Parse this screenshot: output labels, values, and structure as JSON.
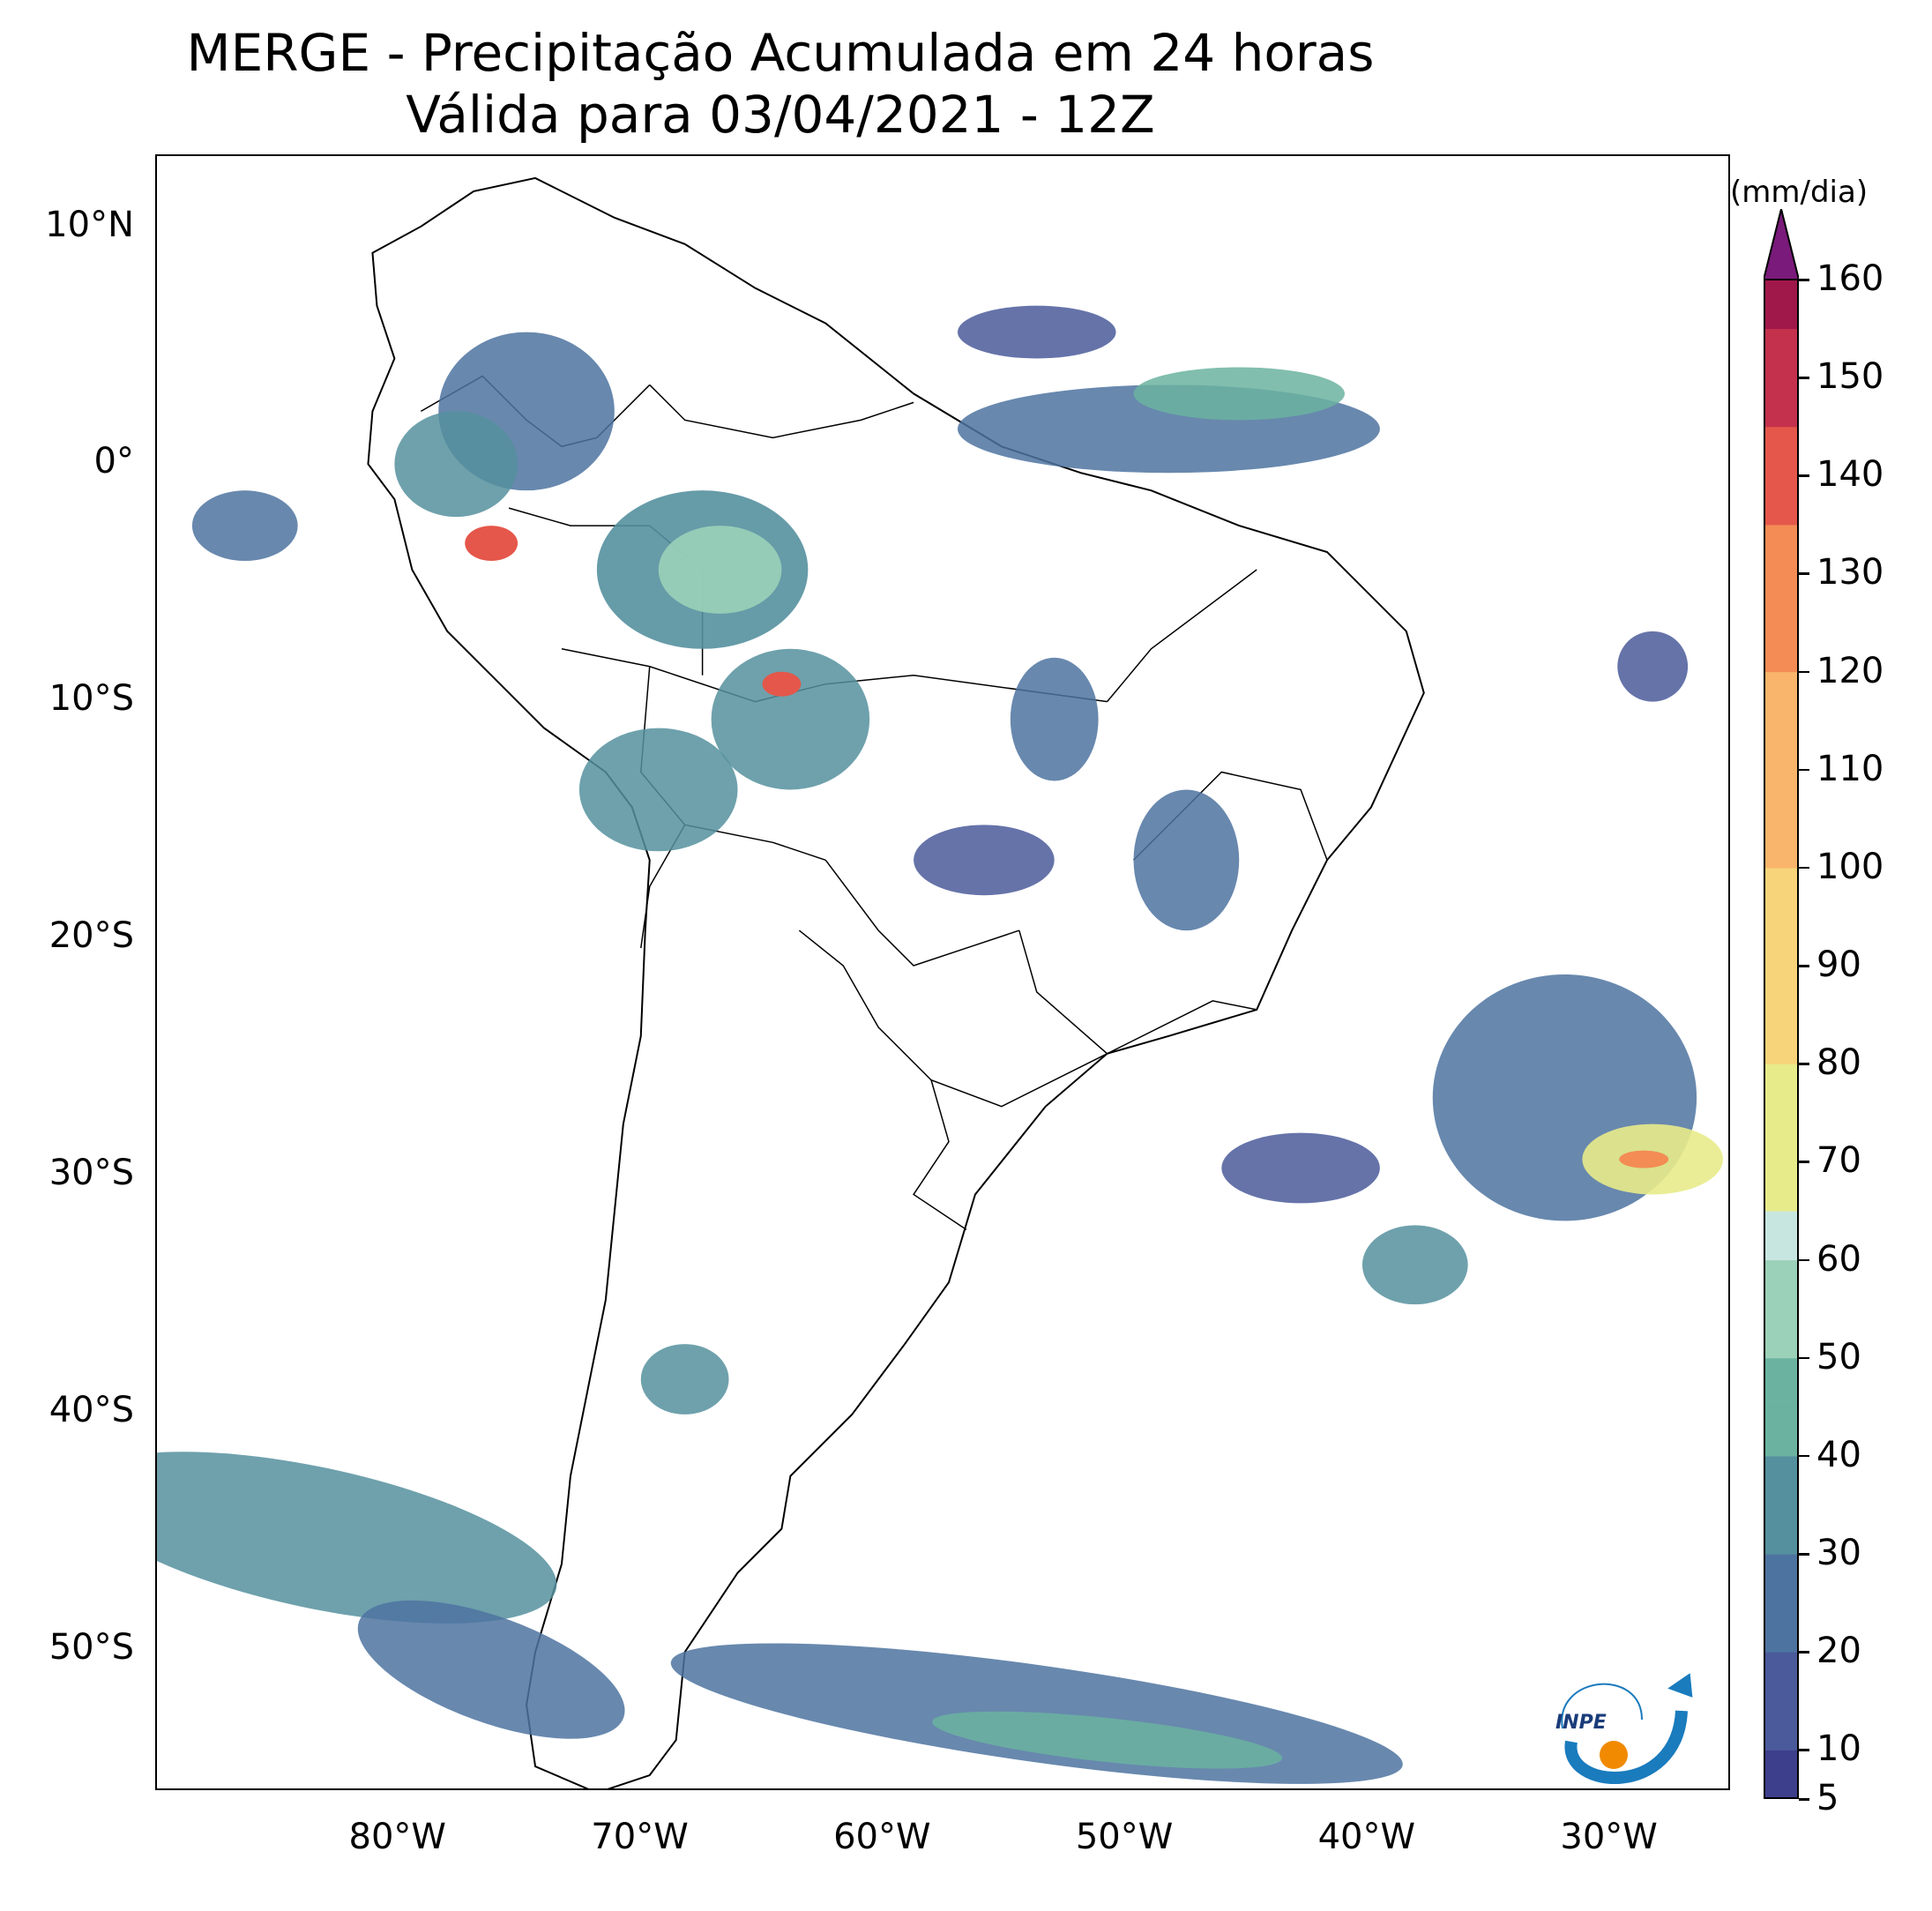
{
  "title": "MERGE - Precipitação Acumulada em 24 horas",
  "subtitle": "Válida para 03/04/2021 - 12Z",
  "map": {
    "extent_lon": [
      -90,
      -25
    ],
    "extent_lat": [
      -56,
      13
    ],
    "lat_labels": [
      "10°N",
      "0°",
      "10°S",
      "20°S",
      "30°S",
      "40°S",
      "50°S"
    ],
    "lat_values": [
      10,
      0,
      -10,
      -20,
      -30,
      -40,
      -50
    ],
    "lon_labels": [
      "80°W",
      "70°W",
      "60°W",
      "50°W",
      "40°W",
      "30°W"
    ],
    "lon_values": [
      -80,
      -70,
      -60,
      -50,
      -40,
      -30
    ]
  },
  "colorbar": {
    "unit": "(mm/dia)",
    "tick_labels": [
      "5",
      "10",
      "20",
      "30",
      "40",
      "50",
      "60",
      "70",
      "80",
      "90",
      "100",
      "110",
      "120",
      "130",
      "140",
      "150",
      "160"
    ],
    "tick_values": [
      5,
      10,
      20,
      30,
      40,
      50,
      60,
      70,
      80,
      90,
      100,
      110,
      120,
      130,
      140,
      150,
      160
    ],
    "colors": [
      "#3d3f8c",
      "#4a5a9a",
      "#4d73a0",
      "#55909e",
      "#6bb3a0",
      "#9ad1b8",
      "#c8e6e0",
      "#e8eb8a",
      "#f7d47a",
      "#f8b56b",
      "#f38c55",
      "#e5574a",
      "#c4314c",
      "#a0184a",
      "#7a1a7a"
    ]
  },
  "logo_text": "INPE"
}
